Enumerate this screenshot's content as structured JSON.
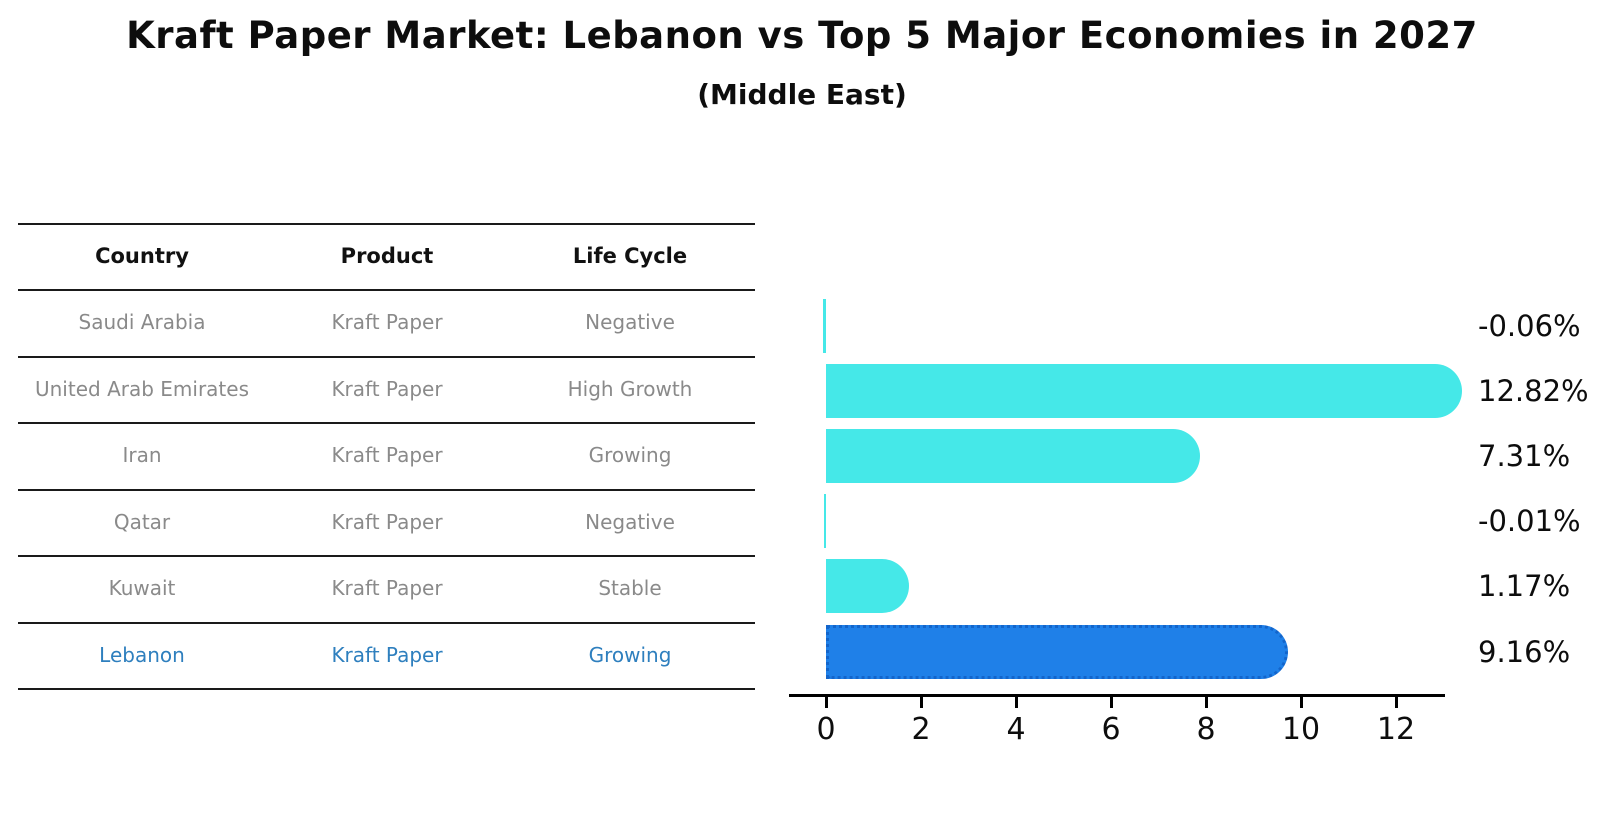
{
  "title": "Kraft Paper Market: Lebanon vs Top 5 Major Economies in 2027",
  "subtitle": "(Middle East)",
  "colors": {
    "bar_default": "#45e8e8",
    "bar_highlight": "#1f80e8",
    "bar_highlight_border": "#1365cb",
    "table_text": "#8a8a8a",
    "highlight_text": "#2e7fbe",
    "header_text": "#111111",
    "axis": "#000000"
  },
  "table": {
    "columns": [
      "Country",
      "Product",
      "Life Cycle"
    ],
    "rows": [
      {
        "country": "Saudi Arabia",
        "product": "Kraft Paper",
        "life_cycle": "Negative",
        "highlight": false
      },
      {
        "country": "United Arab Emirates",
        "product": "Kraft Paper",
        "life_cycle": "High Growth",
        "highlight": false
      },
      {
        "country": "Iran",
        "product": "Kraft Paper",
        "life_cycle": "Growing",
        "highlight": false
      },
      {
        "country": "Qatar",
        "product": "Kraft Paper",
        "life_cycle": "Negative",
        "highlight": false
      },
      {
        "country": "Kuwait",
        "product": "Kraft Paper",
        "life_cycle": "Stable",
        "highlight": false
      },
      {
        "country": "Lebanon",
        "product": "Kraft Paper",
        "life_cycle": "Growing",
        "highlight": true
      }
    ]
  },
  "chart_data": {
    "type": "bar",
    "orientation": "horizontal",
    "title": "Kraft Paper Market: Lebanon vs Top 5 Major Economies in 2027 (Middle East)",
    "xlabel": "",
    "ylabel": "",
    "grid": false,
    "legend": false,
    "categories": [
      "Saudi Arabia",
      "United Arab Emirates",
      "Iran",
      "Qatar",
      "Kuwait",
      "Lebanon"
    ],
    "values": [
      -0.06,
      12.82,
      7.31,
      -0.01,
      1.17,
      9.16
    ],
    "value_labels": [
      "-0.06%",
      "12.82%",
      "7.31%",
      "-0.01%",
      "1.17%",
      "9.16%"
    ],
    "highlight_category": "Lebanon",
    "x_ticks": [
      0,
      2,
      4,
      6,
      8,
      10,
      12
    ],
    "xlim": [
      -0.7,
      13.6
    ]
  }
}
